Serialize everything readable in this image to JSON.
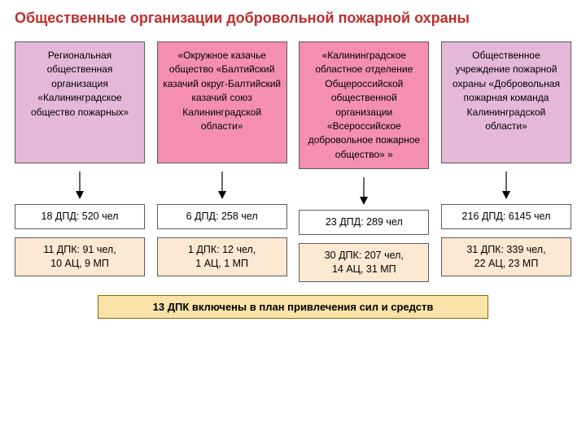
{
  "title": "Общественные организации добровольной пожарной охраны",
  "orgs": [
    {
      "label": "Региональная общественная организация «Калининградское общество пожарных»",
      "bg": "#e5b8d9",
      "dpd": "18 ДПД: 520 чел",
      "dpk": "11 ДПК: 91 чел,\n10 АЦ, 9 МП"
    },
    {
      "label": "«Окружное казачье общество «Балтийский казачий округ-Балтийский казачий союз Калининградской области»",
      "bg": "#f48fb1",
      "dpd": "6 ДПД: 258 чел",
      "dpk": "1 ДПК: 12 чел,\n1 АЦ, 1 МП"
    },
    {
      "label": "«Калининградское областное отделение Общероссийской общественной организации «Всероссийское добровольное пожарное общество» »",
      "bg": "#f48fb1",
      "dpd": "23 ДПД: 289 чел",
      "dpk": "30 ДПК: 207 чел,\n14 АЦ, 31 МП"
    },
    {
      "label": "Общественное учреждение пожарной охраны «Добровольная пожарная команда Калининградской области»",
      "bg": "#e5b8d9",
      "dpd": "216 ДПД: 6145 чел",
      "dpk": "31 ДПК: 339 чел,\n22 АЦ, 23 МП"
    }
  ],
  "dpd_bg": "#ffffff",
  "dpk_bg": "#fde8d2",
  "footer_bg": "#fbe2a8",
  "footer": "13 ДПК включены в план привлечения сил и средств",
  "arrow_color": "#000000"
}
